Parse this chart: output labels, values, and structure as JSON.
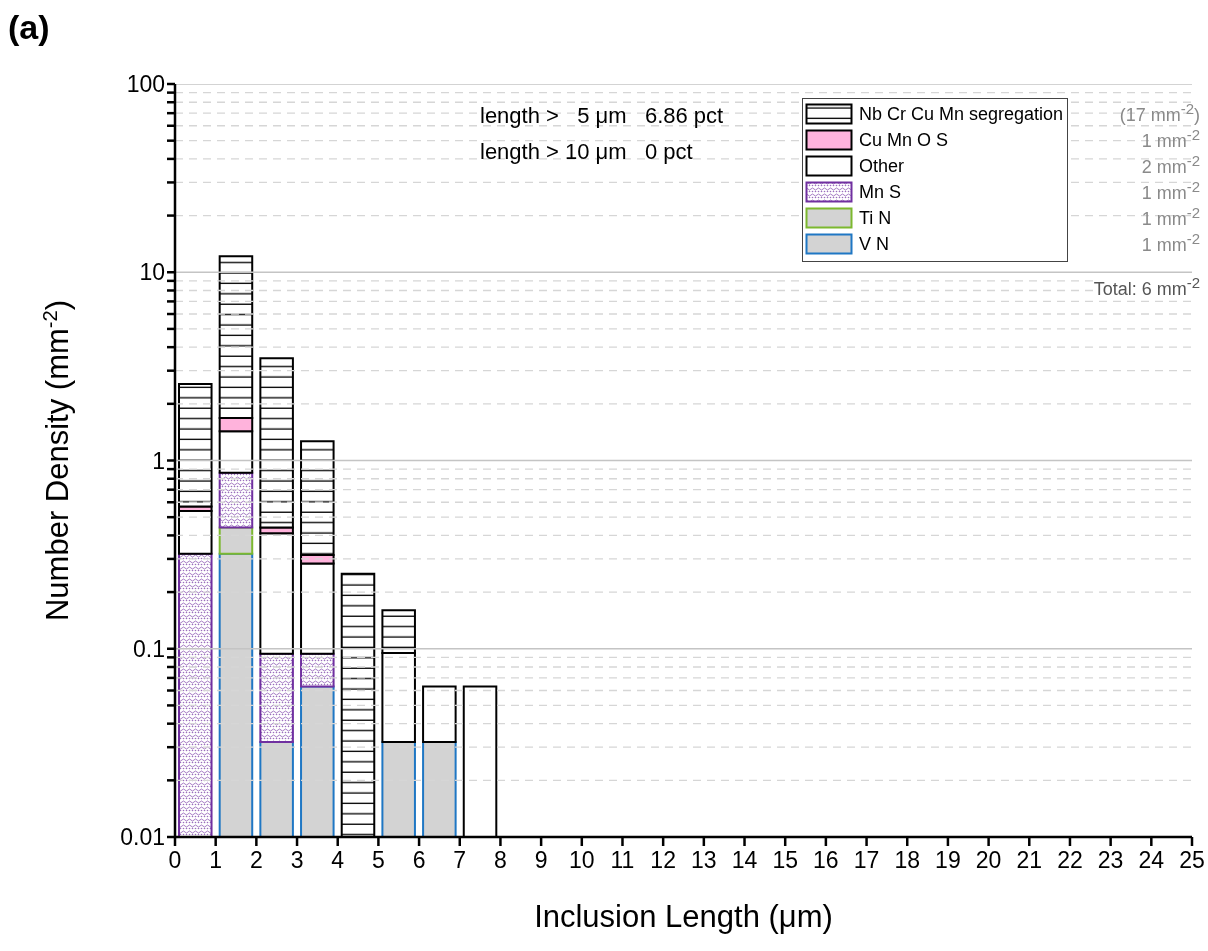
{
  "chart_data": {
    "type": "bar",
    "title": "(a)",
    "xlabel": "Inclusion Length (μm)",
    "ylabel": "Number Density (mm$^{-2}$)",
    "x": [
      0.5,
      1.5,
      2.5,
      3.5,
      4.5,
      5.5,
      6.5,
      7.5
    ],
    "stacked": true,
    "series": [
      {
        "name": "V N",
        "color": "#1f77c4",
        "values": [
          null,
          0.32,
          0.032,
          0.063,
          null,
          0.032,
          0.032,
          null
        ]
      },
      {
        "name": "Ti N",
        "color": "#7cb82f",
        "values": [
          null,
          0.12,
          null,
          null,
          null,
          null,
          null,
          null
        ]
      },
      {
        "name": "Mn S",
        "color": "#7030a0",
        "values": [
          0.32,
          0.42,
          0.062,
          0.031,
          null,
          null,
          null,
          null
        ]
      },
      {
        "name": "Other",
        "color": "#ffffff",
        "values": [
          0.22,
          0.57,
          0.317,
          0.19,
          null,
          0.063,
          0.031,
          0.063
        ]
      },
      {
        "name": "Cu Mn O S",
        "color": "#ffb3dc",
        "values": [
          0.03,
          0.25,
          0.029,
          0.031,
          null,
          null,
          null,
          null
        ]
      },
      {
        "name": "Nb Cr Cu Mn segregation",
        "color": "#000000",
        "values": [
          1.98,
          10.5,
          3.05,
          0.95,
          0.25,
          0.065,
          null,
          null
        ]
      }
    ],
    "log": "y",
    "xlim": [
      0,
      25
    ],
    "xticks": [
      0,
      1,
      2,
      3,
      4,
      5,
      6,
      7,
      8,
      9,
      10,
      11,
      12,
      13,
      14,
      15,
      16,
      17,
      18,
      19,
      20,
      21,
      22,
      23,
      24,
      25
    ],
    "ylim": [
      0.01,
      100
    ],
    "yticks": [
      0.01,
      {
        "value": 0.02,
        "label": null
      },
      {
        "value": 0.03,
        "label": null
      },
      {
        "value": 0.04,
        "label": null
      },
      {
        "value": 0.05,
        "label": null
      },
      {
        "value": 0.06,
        "label": null
      },
      {
        "value": 0.07,
        "label": null
      },
      {
        "value": 0.08,
        "label": null
      },
      {
        "value": 0.09,
        "label": null
      },
      0.1,
      {
        "value": 0.2,
        "label": null
      },
      {
        "value": 0.3,
        "label": null
      },
      {
        "value": 0.4,
        "label": null
      },
      {
        "value": 0.5,
        "label": null
      },
      {
        "value": 0.6,
        "label": null
      },
      {
        "value": 0.7,
        "label": null
      },
      {
        "value": 0.8,
        "label": null
      },
      {
        "value": 0.9,
        "label": null
      },
      1,
      {
        "value": 2,
        "label": null
      },
      {
        "value": 3,
        "label": null
      },
      {
        "value": 4,
        "label": null
      },
      {
        "value": 5,
        "label": null
      },
      {
        "value": 6,
        "label": null
      },
      {
        "value": 7,
        "label": null
      },
      {
        "value": 8,
        "label": null
      },
      {
        "value": 9,
        "label": null
      },
      10,
      {
        "value": 20,
        "label": null
      },
      {
        "value": 30,
        "label": null
      },
      {
        "value": 40,
        "label": null
      },
      {
        "value": 50,
        "label": null
      },
      {
        "value": 60,
        "label": null
      },
      {
        "value": 70,
        "label": null
      },
      {
        "value": 80,
        "label": null
      },
      {
        "value": 90,
        "label": null
      },
      100
    ],
    "grid": "y",
    "legend": "top right",
    "annotations": [
      "length >   5 μm   6.86 pct",
      "length > 10 μm   0 pct",
      "1 mm$^{-2}$",
      "1 mm$^{-2}$",
      "1 mm$^{-2}$",
      "2 mm$^{-2}$",
      "1 mm$^{-2}$",
      "(17 mm$^{-2}$)",
      "Total: 6 mm$^{-2}$"
    ]
  }
}
